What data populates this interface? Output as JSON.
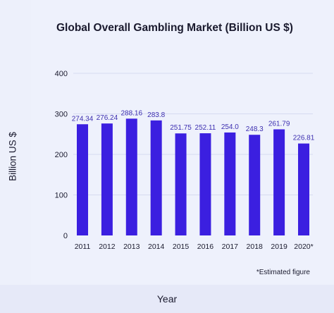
{
  "chart_data": {
    "type": "bar",
    "title": "Global Overall Gambling Market (Billion US $)",
    "xlabel": "Year",
    "ylabel": "Billion US $",
    "categories": [
      "2011",
      "2012",
      "2013",
      "2014",
      "2015",
      "2016",
      "2017",
      "2018",
      "2019",
      "2020*"
    ],
    "values": [
      274.34,
      276.24,
      288.16,
      283.8,
      251.75,
      252.11,
      254.0,
      248.3,
      261.79,
      226.81
    ],
    "value_labels": [
      "274.34",
      "276.24",
      "288.16",
      "283.8",
      "251.75",
      "252.11",
      "254.0",
      "248.3",
      "261.79",
      "226.81"
    ],
    "yticks": [
      "0",
      "100",
      "200",
      "300",
      "400"
    ],
    "ylim": [
      0,
      400
    ],
    "grid": true,
    "bar_color": "#3b1fe0",
    "label_color": "#3d2fb0",
    "footnote": "*Estimated figure"
  }
}
